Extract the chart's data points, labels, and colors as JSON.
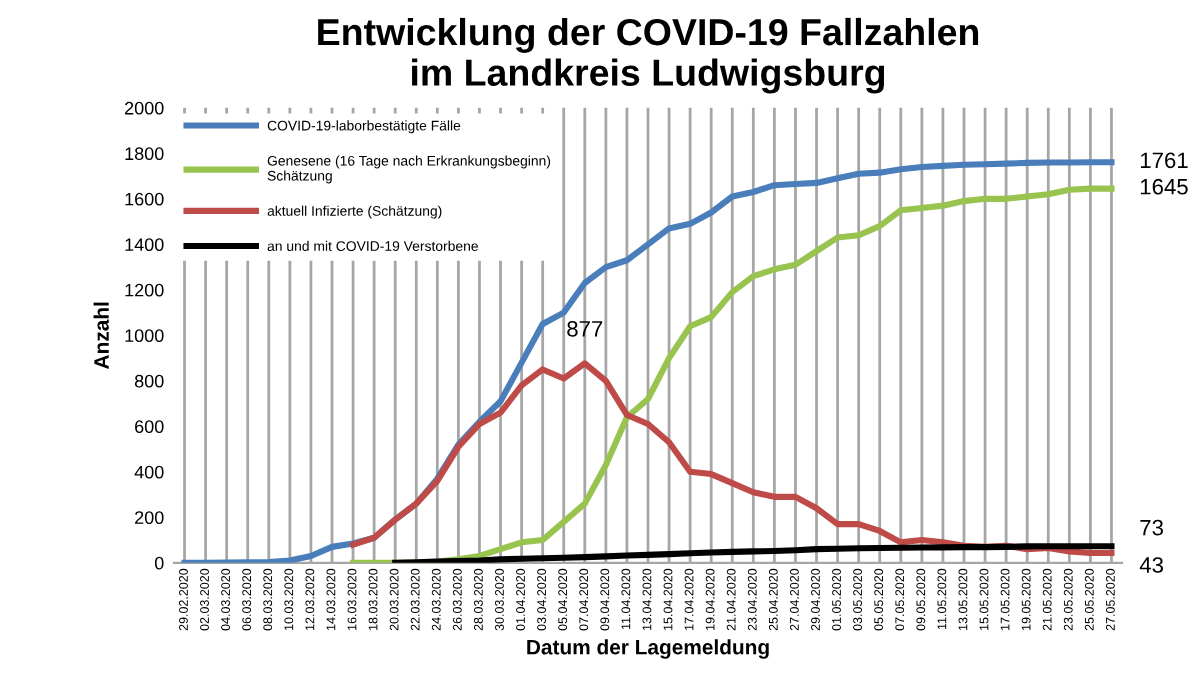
{
  "chart_data": {
    "type": "line",
    "title": "Entwicklung der COVID-19 Fallzahlen\nim Landkreis Ludwigsburg",
    "xlabel": "Datum der Lagemeldung",
    "ylabel": "Anzahl",
    "categories": [
      "29.02.2020",
      "02.03.2020",
      "04.03.2020",
      "06.03.2020",
      "08.03.2020",
      "10.03.2020",
      "12.03.2020",
      "14.03.2020",
      "16.03.2020",
      "18.03.2020",
      "20.03.2020",
      "22.03.2020",
      "24.03.2020",
      "26.03.2020",
      "28.03.2020",
      "30.03.2020",
      "01.04.2020",
      "03.04.2020",
      "05.04.2020",
      "07.04.2020",
      "09.04.2020",
      "11.04.2020",
      "13.04.2020",
      "15.04.2020",
      "17.04.2020",
      "19.04.2020",
      "21.04.2020",
      "23.04.2020",
      "25.04.2020",
      "27.04.2020",
      "29.04.2020",
      "01.05.2020",
      "03.05.2020",
      "05.05.2020",
      "07.05.2020",
      "09.05.2020",
      "11.05.2020",
      "13.05.2020",
      "15.05.2020",
      "17.05.2020",
      "19.05.2020",
      "21.05.2020",
      "23.05.2020",
      "25.05.2020",
      "27.05.2020"
    ],
    "series": [
      {
        "name": "COVID-19-laborbestätigte Fälle",
        "color": "#4a7ebb",
        "values": [
          0,
          0,
          1,
          2,
          3,
          10,
          30,
          70,
          85,
          110,
          190,
          260,
          370,
          520,
          620,
          710,
          880,
          1050,
          1100,
          1230,
          1300,
          1330,
          1400,
          1470,
          1490,
          1540,
          1610,
          1630,
          1660,
          1665,
          1670,
          1690,
          1710,
          1715,
          1730,
          1740,
          1745,
          1750,
          1752,
          1755,
          1758,
          1760,
          1760,
          1761,
          1761
        ]
      },
      {
        "name": "Genesene (16 Tage nach Erkrankungsbeginn)\nSchätzung",
        "color": "#98c34f",
        "values": [
          null,
          null,
          null,
          null,
          null,
          null,
          null,
          null,
          0,
          0,
          0,
          0,
          5,
          15,
          30,
          60,
          90,
          100,
          180,
          260,
          430,
          640,
          720,
          900,
          1040,
          1080,
          1190,
          1260,
          1290,
          1310,
          1370,
          1430,
          1440,
          1480,
          1550,
          1560,
          1570,
          1590,
          1600,
          1600,
          1610,
          1620,
          1640,
          1645,
          1645
        ]
      },
      {
        "name": "aktuell Infizierte (Schätzung)",
        "color": "#be4b48",
        "values": [
          null,
          null,
          null,
          null,
          null,
          null,
          null,
          null,
          80,
          110,
          190,
          260,
          360,
          510,
          610,
          660,
          780,
          850,
          810,
          877,
          800,
          650,
          610,
          530,
          400,
          390,
          350,
          310,
          290,
          290,
          240,
          170,
          170,
          140,
          90,
          100,
          90,
          75,
          70,
          75,
          60,
          65,
          50,
          43,
          43
        ]
      },
      {
        "name": "an und mit COVID-19 Verstorbene",
        "color": "#000000",
        "values": [
          null,
          null,
          null,
          null,
          null,
          null,
          null,
          null,
          null,
          null,
          0,
          2,
          5,
          8,
          10,
          15,
          18,
          20,
          22,
          25,
          28,
          32,
          35,
          38,
          42,
          45,
          48,
          50,
          52,
          55,
          60,
          62,
          64,
          65,
          66,
          67,
          68,
          69,
          69,
          70,
          72,
          73,
          73,
          73,
          73
        ]
      }
    ],
    "annotations": [
      {
        "text": "1761",
        "x": "27.05.2020",
        "y": 1761
      },
      {
        "text": "1645",
        "x": "27.05.2020",
        "y": 1645
      },
      {
        "text": "877",
        "x": "07.04.2020",
        "y": 877
      },
      {
        "text": "73",
        "x": "27.05.2020",
        "y": 73
      },
      {
        "text": "43",
        "x": "27.05.2020",
        "y": 43
      }
    ],
    "ylim": [
      0,
      2000
    ],
    "yticks": [
      0,
      200,
      400,
      600,
      800,
      1000,
      1200,
      1400,
      1600,
      1800,
      2000
    ],
    "grid": "x",
    "legend": "top left",
    "marker": "none",
    "line_style": "solid"
  }
}
